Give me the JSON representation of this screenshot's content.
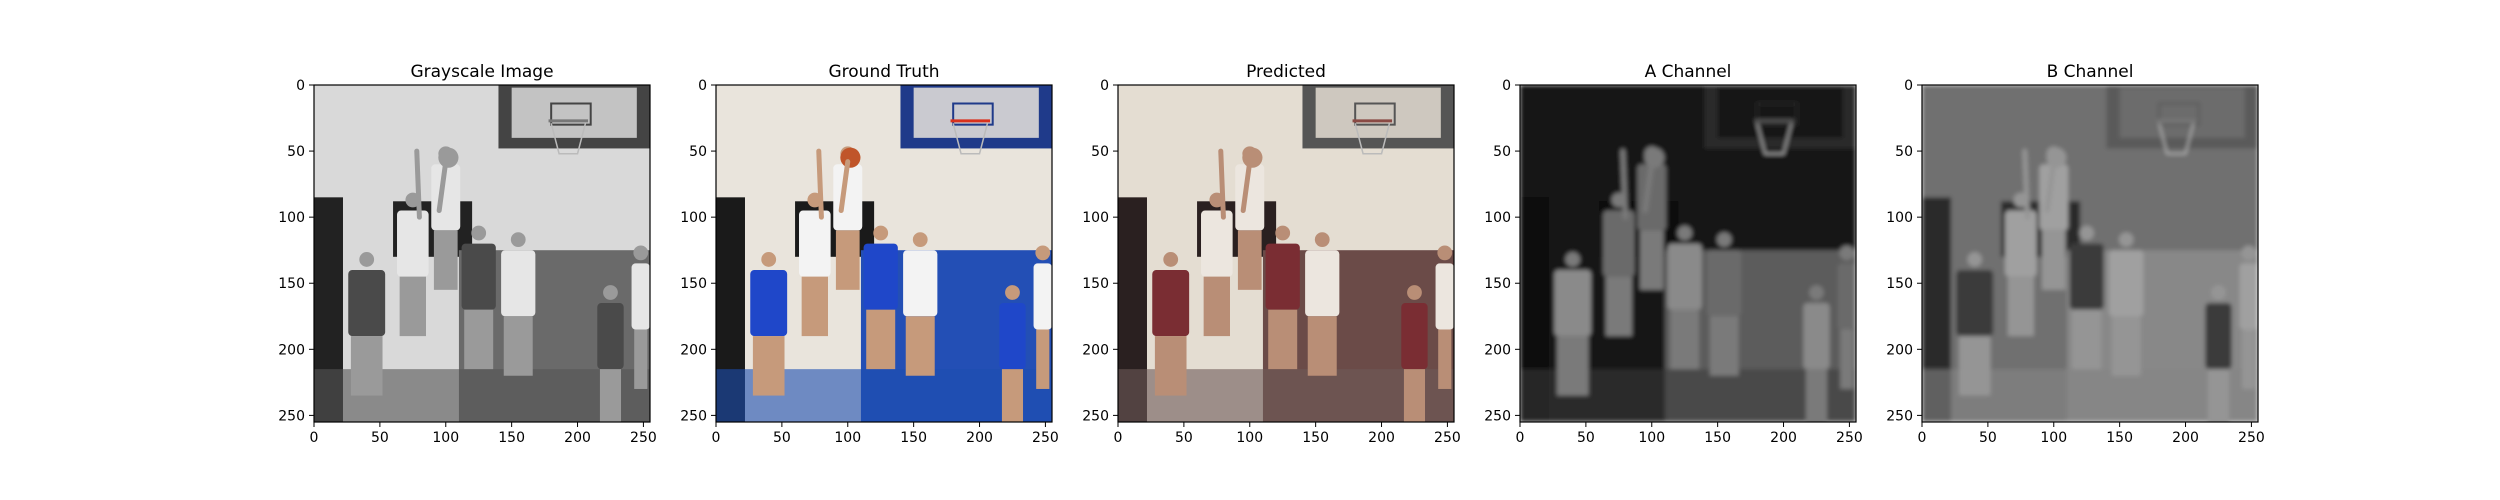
{
  "chart_data": [
    {
      "type": "image",
      "title": "Grayscale Image",
      "xlim": [
        0,
        255
      ],
      "ylim": [
        255,
        0
      ],
      "xticks": [
        0,
        50,
        100,
        150,
        200,
        250
      ],
      "yticks": [
        0,
        50,
        100,
        150,
        200,
        250
      ],
      "xlabel": "",
      "ylabel": "",
      "colormap": "gray"
    },
    {
      "type": "image",
      "title": "Ground Truth",
      "xlim": [
        0,
        255
      ],
      "ylim": [
        255,
        0
      ],
      "xticks": [
        0,
        50,
        100,
        150,
        200,
        250
      ],
      "yticks": [
        0,
        50,
        100,
        150,
        200,
        250
      ],
      "xlabel": "",
      "ylabel": "",
      "colormap": "rgb"
    },
    {
      "type": "image",
      "title": "Predicted",
      "xlim": [
        0,
        255
      ],
      "ylim": [
        255,
        0
      ],
      "xticks": [
        0,
        50,
        100,
        150,
        200,
        250
      ],
      "yticks": [
        0,
        50,
        100,
        150,
        200,
        250
      ],
      "xlabel": "",
      "ylabel": "",
      "colormap": "rgb"
    },
    {
      "type": "image",
      "title": "A Channel",
      "xlim": [
        0,
        255
      ],
      "ylim": [
        255,
        0
      ],
      "xticks": [
        0,
        50,
        100,
        150,
        200,
        250
      ],
      "yticks": [
        0,
        50,
        100,
        150,
        200,
        250
      ],
      "xlabel": "",
      "ylabel": "",
      "colormap": "gray"
    },
    {
      "type": "image",
      "title": "B Channel",
      "xlim": [
        0,
        255
      ],
      "ylim": [
        255,
        0
      ],
      "xticks": [
        0,
        50,
        100,
        150,
        200,
        250
      ],
      "yticks": [
        0,
        50,
        100,
        150,
        200,
        250
      ],
      "xlabel": "",
      "ylabel": "",
      "colormap": "gray"
    }
  ],
  "colors": {
    "axis": "#000000",
    "background": "#ffffff"
  }
}
